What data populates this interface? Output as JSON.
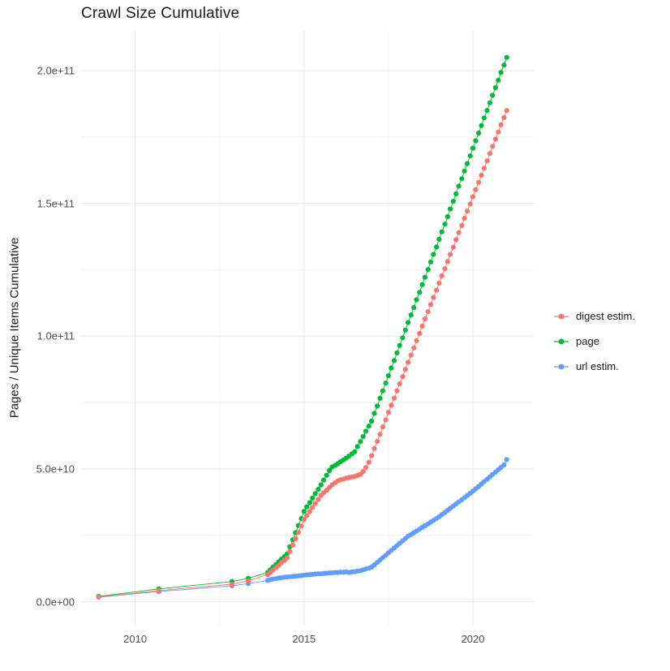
{
  "chart_data": {
    "type": "scatter",
    "title": "Crawl Size Cumulative",
    "xlabel": "",
    "ylabel": "Pages / Unique Items Cumulative",
    "x_ticks": [
      2010,
      2015,
      2020
    ],
    "x_tick_labels": [
      "2010",
      "2015",
      "2020"
    ],
    "y_ticks": [
      0,
      50000000000,
      100000000000,
      150000000000,
      200000000000
    ],
    "y_tick_labels": [
      "0.0e+00",
      "5.0e+10",
      "1.0e+11",
      "1.5e+11",
      "2.0e+11"
    ],
    "x_minor": [
      2012.5,
      2017.5
    ],
    "y_minor": [
      25000000000,
      75000000000,
      125000000000,
      175000000000
    ],
    "xlim": [
      2008.4,
      2021.8
    ],
    "ylim": [
      -9000000000,
      215000000000
    ],
    "grid": true,
    "legend_position": "right",
    "background_color": "#FFFFFF",
    "grid_major_color": "#EBEBEB",
    "grid_minor_color": "#F2F2F2",
    "value_unit": 1000000000,
    "draw_order": [
      2,
      1,
      0
    ],
    "x": [
      2008.92,
      2010.7,
      2012.87,
      2013.35,
      2013.92,
      2014,
      2014.08,
      2014.17,
      2014.25,
      2014.33,
      2014.42,
      2014.5,
      2014.58,
      2014.67,
      2014.75,
      2014.83,
      2014.92,
      2015,
      2015.08,
      2015.17,
      2015.25,
      2015.33,
      2015.42,
      2015.5,
      2015.58,
      2015.67,
      2015.75,
      2015.83,
      2015.92,
      2016,
      2016.08,
      2016.17,
      2016.25,
      2016.33,
      2016.42,
      2016.5,
      2016.58,
      2016.67,
      2016.75,
      2016.83,
      2016.92,
      2017,
      2017.08,
      2017.17,
      2017.25,
      2017.33,
      2017.42,
      2017.5,
      2017.58,
      2017.67,
      2017.75,
      2017.83,
      2017.92,
      2018,
      2018.08,
      2018.17,
      2018.25,
      2018.33,
      2018.42,
      2018.5,
      2018.58,
      2018.67,
      2018.75,
      2018.83,
      2018.92,
      2019,
      2019.08,
      2019.17,
      2019.25,
      2019.33,
      2019.42,
      2019.5,
      2019.58,
      2019.67,
      2019.75,
      2019.83,
      2019.92,
      2020,
      2020.08,
      2020.17,
      2020.25,
      2020.33,
      2020.42,
      2020.5,
      2020.58,
      2020.67,
      2020.75,
      2020.83,
      2020.92,
      2021
    ],
    "series": [
      {
        "name": "digest estim.",
        "color": "#F8766D",
        "values_e9": [
          1.8,
          4.2,
          6.6,
          7.8,
          10.2,
          11,
          11.9,
          12.8,
          13.7,
          14.7,
          15.6,
          16.5,
          18.9,
          21.3,
          23.7,
          26.1,
          28.5,
          31,
          32.5,
          34,
          35.5,
          37,
          38.5,
          40,
          41,
          42,
          43,
          44,
          44.8,
          45.5,
          45.9,
          46.2,
          46.5,
          46.8,
          47,
          47.2,
          47.5,
          48,
          49,
          50.5,
          52.5,
          55,
          57.7,
          60.4,
          63.1,
          65.8,
          68.5,
          71.3,
          74,
          76.7,
          79.4,
          82.1,
          84.8,
          87.5,
          90.2,
          92.9,
          95.6,
          98.3,
          101,
          103.8,
          106.5,
          109.2,
          111.9,
          114.6,
          117.3,
          120,
          122.7,
          125.4,
          128.1,
          130.8,
          133.5,
          136.3,
          139,
          141.7,
          144.4,
          147.1,
          149.8,
          152.5,
          155.2,
          157.9,
          160.6,
          163.3,
          166,
          168.8,
          171.5,
          174.2,
          176.9,
          179.6,
          182.3,
          185
        ]
      },
      {
        "name": "page",
        "color": "#00BA38",
        "values_e9": [
          2,
          4.8,
          7.6,
          8.8,
          11,
          12,
          13,
          14,
          15,
          16,
          17,
          18,
          20.7,
          23.3,
          26,
          28.7,
          31.3,
          34,
          35.7,
          37.3,
          39,
          40.7,
          42.3,
          44,
          45.8,
          47.6,
          49.4,
          50.7,
          51.3,
          52,
          52.7,
          53.4,
          54.1,
          54.8,
          55.7,
          56.5,
          58.4,
          60.3,
          62.2,
          64.2,
          66.1,
          68,
          70.9,
          73.7,
          76.6,
          79.4,
          82.3,
          85.1,
          88,
          90.8,
          93.7,
          96.5,
          99.4,
          102.3,
          105.1,
          108,
          110.8,
          113.7,
          116.5,
          119.4,
          122.2,
          125.1,
          127.9,
          130.8,
          133.6,
          136.5,
          139.3,
          142.2,
          145,
          147.9,
          150.8,
          153.6,
          156.5,
          159.3,
          162.2,
          165,
          167.9,
          170.8,
          173.6,
          176.5,
          179.3,
          182.2,
          185,
          187.9,
          190.7,
          193.6,
          196.4,
          199.3,
          202.1,
          205
        ]
      },
      {
        "name": "url estim.",
        "color": "#619CFF",
        "values_e9": [
          1.7,
          3.8,
          6,
          6.8,
          8,
          8.3,
          8.5,
          8.7,
          8.9,
          9,
          9.2,
          9.3,
          9.4,
          9.5,
          9.6,
          9.7,
          9.8,
          10,
          10.1,
          10.2,
          10.3,
          10.4,
          10.5,
          10.5,
          10.6,
          10.7,
          10.8,
          10.9,
          11,
          11,
          11.1,
          11.1,
          11.2,
          11,
          11.2,
          11.3,
          11.5,
          11.7,
          12,
          12.3,
          12.6,
          13,
          13.9,
          14.8,
          15.7,
          16.6,
          17.5,
          18.4,
          19.3,
          20.2,
          21.1,
          22,
          22.9,
          23.8,
          24.7,
          25.3,
          26,
          26.6,
          27.3,
          28,
          28.6,
          29.3,
          30,
          30.6,
          31.3,
          32,
          32.8,
          33.6,
          34.4,
          35.2,
          36,
          36.8,
          37.6,
          38.4,
          39.2,
          40,
          40.8,
          41.6,
          42.5,
          43.4,
          44.3,
          45.2,
          46.1,
          47,
          47.9,
          48.8,
          49.7,
          50.6,
          51.5,
          53.5
        ]
      }
    ]
  }
}
